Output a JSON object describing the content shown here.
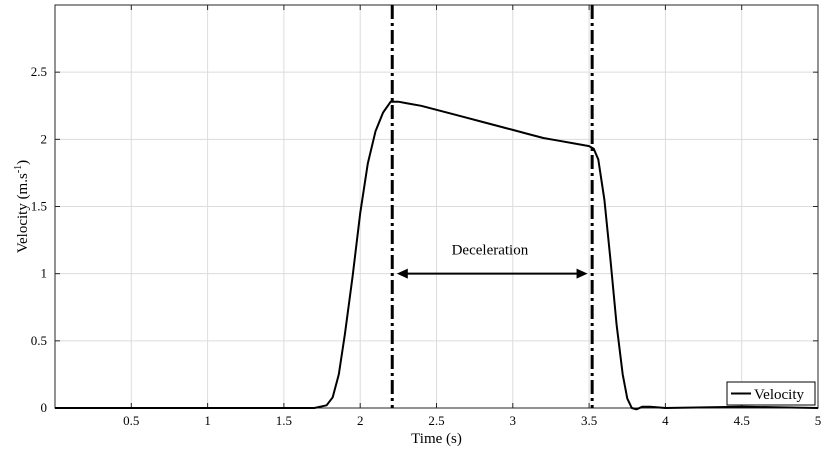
{
  "chart_data": {
    "type": "line",
    "xlabel": "Time (s)",
    "ylabel_main": "Velocity (m.s",
    "ylabel_sup": "-1",
    "ylabel_close": ")",
    "xlim": [
      0,
      5
    ],
    "ylim": [
      0,
      3
    ],
    "xticks": [
      0.5,
      1,
      1.5,
      2,
      2.5,
      3,
      3.5,
      4,
      4.5,
      5
    ],
    "xtick_labels": [
      "0.5",
      "1",
      "1.5",
      "2",
      "2.5",
      "3",
      "3.5",
      "4",
      "4.5",
      "5"
    ],
    "yticks": [
      0,
      0.5,
      1,
      1.5,
      2,
      2.5
    ],
    "ytick_labels": [
      "0",
      "0.5",
      "1",
      "1.5",
      "2",
      "2.5"
    ],
    "grid": true,
    "legend_position": "bottom-right",
    "series": [
      {
        "name": "Velocity",
        "color": "#000000",
        "x": [
          0,
          0.5,
          1.0,
          1.5,
          1.7,
          1.78,
          1.82,
          1.86,
          1.9,
          1.95,
          2.0,
          2.05,
          2.1,
          2.15,
          2.2,
          2.25,
          2.3,
          2.4,
          2.5,
          2.6,
          2.7,
          2.8,
          2.9,
          3.0,
          3.1,
          3.2,
          3.3,
          3.4,
          3.5,
          3.53,
          3.56,
          3.6,
          3.64,
          3.68,
          3.72,
          3.75,
          3.78,
          3.81,
          3.85,
          3.9,
          4.0,
          4.5,
          5.0
        ],
        "y": [
          0,
          0,
          0,
          0,
          0.0,
          0.02,
          0.08,
          0.25,
          0.55,
          0.98,
          1.45,
          1.82,
          2.06,
          2.2,
          2.28,
          2.28,
          2.27,
          2.25,
          2.22,
          2.19,
          2.16,
          2.13,
          2.1,
          2.07,
          2.04,
          2.01,
          1.99,
          1.97,
          1.95,
          1.93,
          1.85,
          1.55,
          1.1,
          0.62,
          0.25,
          0.07,
          0.0,
          -0.01,
          0.01,
          0.01,
          0.0,
          0.01,
          0.0
        ]
      }
    ],
    "vlines": [
      2.21,
      3.52
    ],
    "annotation": {
      "text": "Deceleration",
      "x": 2.85,
      "y": 1.18,
      "arrow_from": 2.24,
      "arrow_to": 3.49,
      "arrow_y": 1.0
    }
  }
}
